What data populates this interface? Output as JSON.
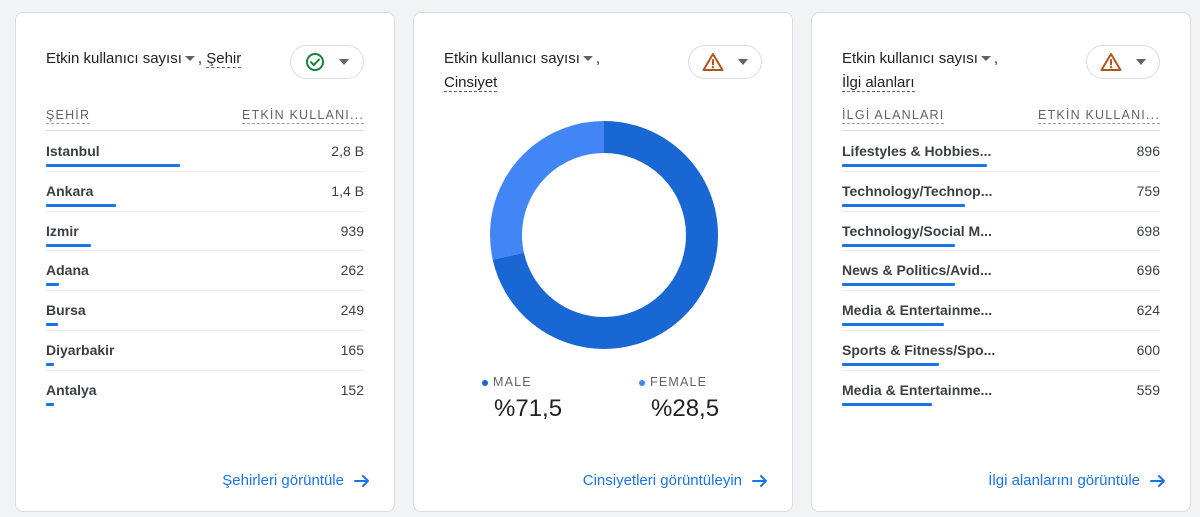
{
  "colors": {
    "accent": "#1a73e8",
    "male": "#1967d2",
    "female": "#4285f4",
    "ok": "#188038",
    "warn": "#e37400"
  },
  "city_card": {
    "metric": "Etkin kullanıcı sayısı",
    "sep": ",",
    "dimension": "Şehir",
    "status_icon": "check-circle-icon",
    "col_dim": "ŞEHİR",
    "col_metric": "ETKİN KULLANI...",
    "rows": [
      {
        "name": "Istanbul",
        "value": "2,8 B",
        "share": 0.42
      },
      {
        "name": "Ankara",
        "value": "1,4 B",
        "share": 0.22
      },
      {
        "name": "Izmir",
        "value": "939",
        "share": 0.14
      },
      {
        "name": "Adana",
        "value": "262",
        "share": 0.04
      },
      {
        "name": "Bursa",
        "value": "249",
        "share": 0.037
      },
      {
        "name": "Diyarbakir",
        "value": "165",
        "share": 0.026
      },
      {
        "name": "Antalya",
        "value": "152",
        "share": 0.024
      }
    ],
    "link": "Şehirleri görüntüle"
  },
  "gender_card": {
    "metric": "Etkin kullanıcı sayısı",
    "sep": ",",
    "dimension": "Cinsiyet",
    "status_icon": "warning-icon",
    "male_label": "MALE",
    "male_pct": "%71,5",
    "male_value": 71.5,
    "female_label": "FEMALE",
    "female_pct": "%28,5",
    "female_value": 28.5,
    "link": "Cinsiyetleri görüntüleyin"
  },
  "interest_card": {
    "metric": "Etkin kullanıcı sayısı",
    "sep": ",",
    "dimension": "İlgi alanları",
    "status_icon": "warning-icon",
    "col_dim": "İLGİ ALANLARI",
    "col_metric": "ETKİN KULLANI...",
    "rows": [
      {
        "name": "Lifestyles & Hobbies...",
        "value": "896",
        "share": 1.0
      },
      {
        "name": "Technology/Technop...",
        "value": "759",
        "share": 0.85
      },
      {
        "name": "Technology/Social M...",
        "value": "698",
        "share": 0.78
      },
      {
        "name": "News & Politics/Avid...",
        "value": "696",
        "share": 0.78
      },
      {
        "name": "Media & Entertainme...",
        "value": "624",
        "share": 0.7
      },
      {
        "name": "Sports & Fitness/Spo...",
        "value": "600",
        "share": 0.67
      },
      {
        "name": "Media & Entertainme...",
        "value": "559",
        "share": 0.62
      }
    ],
    "link": "İlgi alanlarını görüntüle"
  }
}
